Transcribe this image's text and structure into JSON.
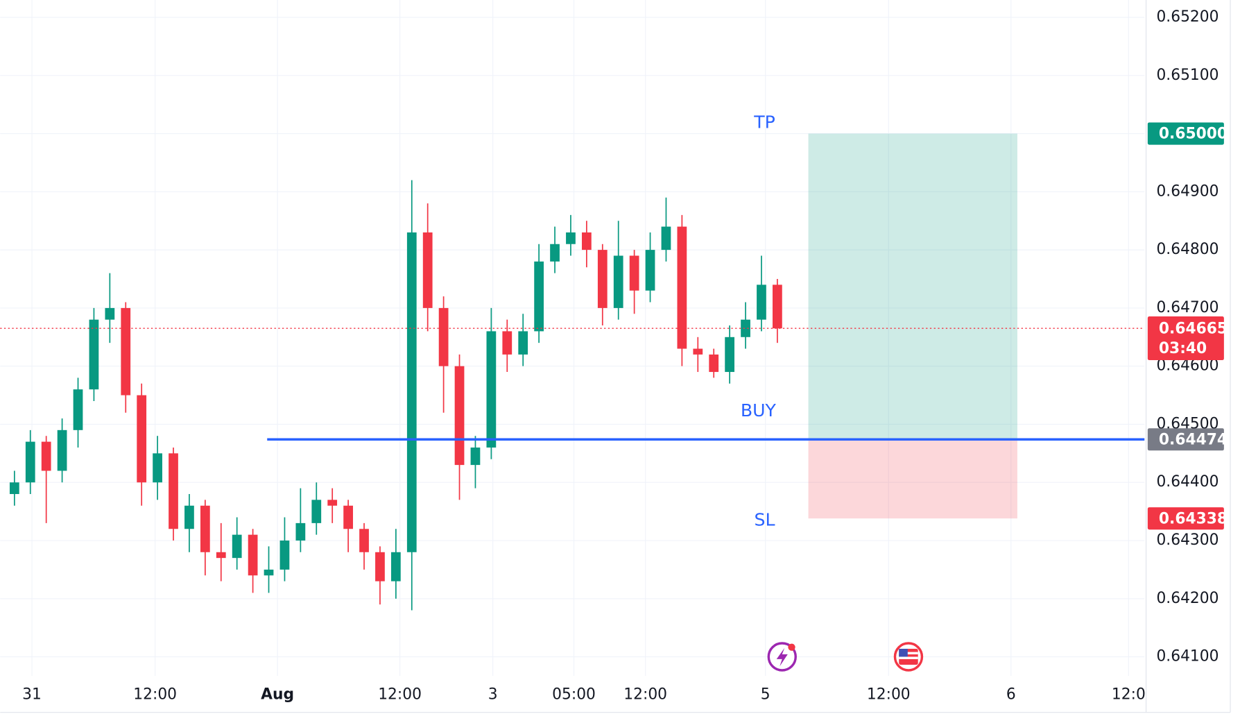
{
  "chart_data": {
    "type": "candlestick",
    "up_color": "#089981",
    "down_color": "#f23645",
    "grid": true,
    "x": [
      0,
      2,
      4,
      6,
      8,
      10,
      12,
      14,
      16,
      18,
      20,
      22,
      24,
      26,
      28,
      30,
      32,
      34,
      36,
      38,
      40,
      42,
      44,
      46,
      48,
      50,
      52,
      54,
      56,
      58,
      60,
      62,
      64,
      66,
      68,
      70,
      72,
      74,
      76,
      78,
      80,
      82,
      84,
      86,
      88,
      90,
      92,
      94,
      96
    ],
    "open": [
      0.6438,
      0.644,
      0.6447,
      0.6442,
      0.6449,
      0.6456,
      0.6468,
      0.647,
      0.6455,
      0.644,
      0.6445,
      0.6432,
      0.6436,
      0.6428,
      0.6427,
      0.6431,
      0.6424,
      0.6425,
      0.643,
      0.6433,
      0.6437,
      0.6436,
      0.6432,
      0.6428,
      0.6423,
      0.6428,
      0.6483,
      0.647,
      0.646,
      0.6443,
      0.6446,
      0.6466,
      0.6462,
      0.6466,
      0.6478,
      0.6481,
      0.6483,
      0.648,
      0.647,
      0.6479,
      0.6473,
      0.648,
      0.6484,
      0.6463,
      0.6462,
      0.6459,
      0.6465,
      0.6468,
      0.6474
    ],
    "high": [
      0.6442,
      0.6449,
      0.6448,
      0.6451,
      0.6458,
      0.647,
      0.6476,
      0.6471,
      0.6457,
      0.6448,
      0.6446,
      0.6438,
      0.6437,
      0.6433,
      0.6434,
      0.6432,
      0.6429,
      0.6434,
      0.6439,
      0.644,
      0.6439,
      0.6437,
      0.6433,
      0.6429,
      0.6432,
      0.6492,
      0.6488,
      0.6472,
      0.6462,
      0.6448,
      0.647,
      0.6468,
      0.6469,
      0.6481,
      0.6484,
      0.6486,
      0.6485,
      0.6481,
      0.6485,
      0.648,
      0.6483,
      0.6489,
      0.6486,
      0.6465,
      0.6463,
      0.6467,
      0.6471,
      0.6479,
      0.6475
    ],
    "low": [
      0.6436,
      0.6438,
      0.6433,
      0.644,
      0.6446,
      0.6454,
      0.6464,
      0.6452,
      0.6436,
      0.6437,
      0.643,
      0.6428,
      0.6424,
      0.6423,
      0.6425,
      0.6421,
      0.6421,
      0.6423,
      0.6428,
      0.6431,
      0.6433,
      0.6428,
      0.6425,
      0.6419,
      0.642,
      0.6418,
      0.6466,
      0.6452,
      0.6437,
      0.6439,
      0.6444,
      0.6459,
      0.646,
      0.6464,
      0.6476,
      0.6479,
      0.6477,
      0.6467,
      0.6468,
      0.6469,
      0.6471,
      0.6478,
      0.646,
      0.6459,
      0.6458,
      0.6457,
      0.6463,
      0.6466,
      0.6464
    ],
    "close": [
      0.644,
      0.6447,
      0.6442,
      0.6449,
      0.6456,
      0.6468,
      0.647,
      0.6455,
      0.644,
      0.6445,
      0.6432,
      0.6436,
      0.6428,
      0.6427,
      0.6431,
      0.6424,
      0.6425,
      0.643,
      0.6433,
      0.6437,
      0.6436,
      0.6432,
      0.6428,
      0.6423,
      0.6428,
      0.6483,
      0.647,
      0.646,
      0.6443,
      0.6446,
      0.6466,
      0.6462,
      0.6466,
      0.6478,
      0.6481,
      0.6483,
      0.648,
      0.647,
      0.6479,
      0.6473,
      0.648,
      0.6484,
      0.6463,
      0.6462,
      0.6459,
      0.6465,
      0.6468,
      0.6474,
      0.64665
    ],
    "xlim": [
      0,
      142.2
    ],
    "xticks": [
      {
        "value": 2.2,
        "label": "31"
      },
      {
        "value": 17.7,
        "label": "12:00"
      },
      {
        "value": 33.1,
        "label": "Aug"
      },
      {
        "value": 48.5,
        "label": "12:00"
      },
      {
        "value": 60.2,
        "label": "3"
      },
      {
        "value": 70.4,
        "label": "05:00"
      },
      {
        "value": 79.4,
        "label": "12:00"
      },
      {
        "value": 94.5,
        "label": "5"
      },
      {
        "value": 110,
        "label": "12:00"
      },
      {
        "value": 125.4,
        "label": "6"
      },
      {
        "value": 140.2,
        "label": "12:0"
      }
    ],
    "ylim": [
      0.6407,
      0.65223
    ],
    "yticks": [
      {
        "value": 0.641,
        "label": "0.64100"
      },
      {
        "value": 0.642,
        "label": "0.64200"
      },
      {
        "value": 0.643,
        "label": "0.64300"
      },
      {
        "value": 0.644,
        "label": "0.64400"
      },
      {
        "value": 0.645,
        "label": "0.64500"
      },
      {
        "value": 0.646,
        "label": "0.64600"
      },
      {
        "value": 0.647,
        "label": "0.64700"
      },
      {
        "value": 0.648,
        "label": "0.64800"
      },
      {
        "value": 0.649,
        "label": "0.64900"
      },
      {
        "value": 0.65,
        "label": "0.65000"
      },
      {
        "value": 0.651,
        "label": "0.65100"
      },
      {
        "value": 0.652,
        "label": "0.65200"
      }
    ],
    "current_price": {
      "value": 0.64665,
      "label": "0.64665",
      "timer": "03:40",
      "color": "#f23645"
    },
    "position": {
      "start_x": 99.9,
      "end_x": 126.2,
      "take_profit": {
        "value": 0.65,
        "label": "0.65000",
        "text": "TP",
        "color": "#089981"
      },
      "entry": {
        "value": 0.64474,
        "label": "0.64474",
        "text": "BUY",
        "color": "#2962ff",
        "tag_color": "#787b86",
        "line_start_x": 31.8
      },
      "stop_loss": {
        "value": 0.64338,
        "label": "0.64338",
        "text": "SL",
        "color": "#f23645"
      }
    }
  }
}
